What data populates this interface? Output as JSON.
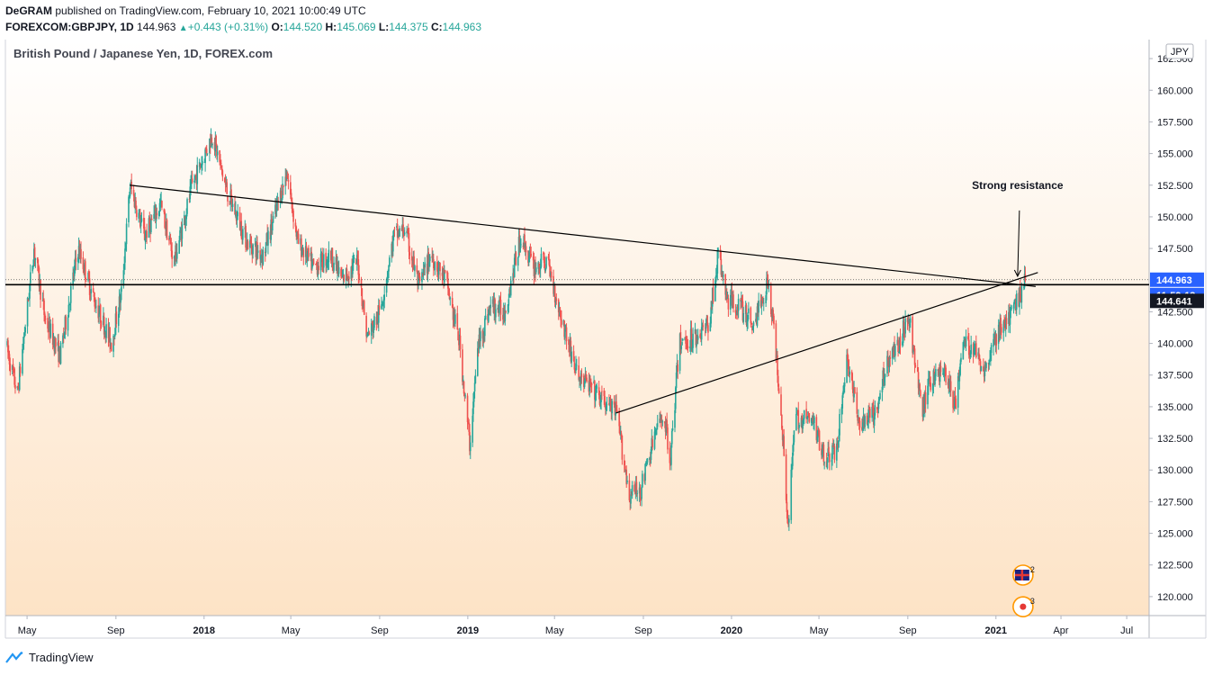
{
  "header": {
    "author": "DeGRAM",
    "published_text": "published on TradingView.com, February 10, 2021 10:00:49 UTC",
    "symbol": "FOREXCOM:GBPJPY, 1D",
    "last": "144.963",
    "change": "+0.443 (+0.31%)",
    "o_label": "O:",
    "o_value": "144.520",
    "h_label": "H:",
    "h_value": "145.069",
    "l_label": "L:",
    "l_value": "144.375",
    "c_label": "C:",
    "c_value": "144.963"
  },
  "footer": {
    "brand": "TradingView"
  },
  "colors": {
    "up": "#26a69a",
    "down": "#ef5350",
    "bg_top": "#ffffff",
    "bg_bottom": "#fde3c6",
    "price_tag": "#2962ff",
    "countdown_tag": "#2962ff",
    "line_tag": "#131722"
  },
  "chart_data": {
    "type": "candlestick",
    "title": "British Pound / Japanese Yen, 1D, FOREX.com",
    "currency_label": "JPY",
    "ylim": [
      118.5,
      164.0
    ],
    "xlim": [
      "2017-04-01",
      "2021-08-01"
    ],
    "y_ticks": [
      {
        "v": 120,
        "label": "120.000"
      },
      {
        "v": 122.5,
        "label": "122.500"
      },
      {
        "v": 125,
        "label": "125.000"
      },
      {
        "v": 127.5,
        "label": "127.500"
      },
      {
        "v": 130,
        "label": "130.000"
      },
      {
        "v": 132.5,
        "label": "132.500"
      },
      {
        "v": 135,
        "label": "135.000"
      },
      {
        "v": 137.5,
        "label": "137.500"
      },
      {
        "v": 140,
        "label": "140.000"
      },
      {
        "v": 142.5,
        "label": "142.500"
      },
      {
        "v": 147.5,
        "label": "147.500"
      },
      {
        "v": 150,
        "label": "150.000"
      },
      {
        "v": 152.5,
        "label": "152.500"
      },
      {
        "v": 155,
        "label": "155.000"
      },
      {
        "v": 157.5,
        "label": "157.500"
      },
      {
        "v": 160,
        "label": "160.000"
      },
      {
        "v": 162.5,
        "label": "162.500"
      }
    ],
    "x_ticks": [
      {
        "date": "2017-05-01",
        "label": "May",
        "bold": false
      },
      {
        "date": "2017-09-01",
        "label": "Sep",
        "bold": false
      },
      {
        "date": "2018-01-01",
        "label": "2018",
        "bold": true
      },
      {
        "date": "2018-05-01",
        "label": "May",
        "bold": false
      },
      {
        "date": "2018-09-01",
        "label": "Sep",
        "bold": false
      },
      {
        "date": "2019-01-01",
        "label": "2019",
        "bold": true
      },
      {
        "date": "2019-05-01",
        "label": "May",
        "bold": false
      },
      {
        "date": "2019-09-01",
        "label": "Sep",
        "bold": false
      },
      {
        "date": "2020-01-01",
        "label": "2020",
        "bold": true
      },
      {
        "date": "2020-05-01",
        "label": "May",
        "bold": false
      },
      {
        "date": "2020-09-01",
        "label": "Sep",
        "bold": false
      },
      {
        "date": "2021-01-01",
        "label": "2021",
        "bold": true
      },
      {
        "date": "2021-04-01",
        "label": "Apr",
        "bold": false
      },
      {
        "date": "2021-07-01",
        "label": "Jul",
        "bold": false
      }
    ],
    "price_path": [
      [
        "2017-04-01",
        140.0
      ],
      [
        "2017-04-17",
        136.0
      ],
      [
        "2017-05-01",
        143.0
      ],
      [
        "2017-05-10",
        147.5
      ],
      [
        "2017-05-25",
        142.0
      ],
      [
        "2017-06-15",
        139.0
      ],
      [
        "2017-07-10",
        147.5
      ],
      [
        "2017-08-01",
        143.5
      ],
      [
        "2017-08-25",
        140.0
      ],
      [
        "2017-09-08",
        144.0
      ],
      [
        "2017-09-20",
        152.5
      ],
      [
        "2017-10-10",
        148.5
      ],
      [
        "2017-11-01",
        151.0
      ],
      [
        "2017-11-20",
        146.5
      ],
      [
        "2017-12-15",
        152.5
      ],
      [
        "2018-01-12",
        156.5
      ],
      [
        "2018-02-01",
        152.0
      ],
      [
        "2018-03-01",
        148.0
      ],
      [
        "2018-03-23",
        147.0
      ],
      [
        "2018-04-10",
        150.5
      ],
      [
        "2018-04-25",
        153.5
      ],
      [
        "2018-05-10",
        148.0
      ],
      [
        "2018-06-01",
        146.0
      ],
      [
        "2018-06-25",
        147.0
      ],
      [
        "2018-07-10",
        145.0
      ],
      [
        "2018-08-01",
        146.5
      ],
      [
        "2018-08-14",
        140.5
      ],
      [
        "2018-09-01",
        142.5
      ],
      [
        "2018-09-20",
        148.5
      ],
      [
        "2018-10-05",
        149.0
      ],
      [
        "2018-10-25",
        144.5
      ],
      [
        "2018-11-10",
        147.0
      ],
      [
        "2018-12-01",
        145.0
      ],
      [
        "2018-12-20",
        140.0
      ],
      [
        "2019-01-03",
        132.0
      ],
      [
        "2019-01-15",
        140.0
      ],
      [
        "2019-02-01",
        143.0
      ],
      [
        "2019-02-20",
        142.5
      ],
      [
        "2019-03-15",
        148.5
      ],
      [
        "2019-04-01",
        146.0
      ],
      [
        "2019-04-20",
        146.5
      ],
      [
        "2019-05-10",
        142.0
      ],
      [
        "2019-06-01",
        137.5
      ],
      [
        "2019-06-20",
        136.5
      ],
      [
        "2019-07-05",
        135.5
      ],
      [
        "2019-07-25",
        134.5
      ],
      [
        "2019-08-12",
        128.0
      ],
      [
        "2019-08-28",
        128.5
      ],
      [
        "2019-09-15",
        132.5
      ],
      [
        "2019-09-28",
        134.5
      ],
      [
        "2019-10-08",
        131.0
      ],
      [
        "2019-10-20",
        140.0
      ],
      [
        "2019-11-10",
        140.5
      ],
      [
        "2019-11-30",
        141.5
      ],
      [
        "2019-12-13",
        147.0
      ],
      [
        "2019-12-25",
        143.5
      ],
      [
        "2020-01-10",
        143.0
      ],
      [
        "2020-01-31",
        141.5
      ],
      [
        "2020-02-20",
        145.0
      ],
      [
        "2020-03-01",
        140.0
      ],
      [
        "2020-03-10",
        134.0
      ],
      [
        "2020-03-19",
        125.5
      ],
      [
        "2020-03-28",
        134.0
      ],
      [
        "2020-04-20",
        134.0
      ],
      [
        "2020-05-10",
        131.0
      ],
      [
        "2020-05-25",
        131.5
      ],
      [
        "2020-06-08",
        139.0
      ],
      [
        "2020-06-25",
        133.5
      ],
      [
        "2020-07-20",
        134.5
      ],
      [
        "2020-08-01",
        138.5
      ],
      [
        "2020-08-20",
        140.0
      ],
      [
        "2020-09-01",
        142.5
      ],
      [
        "2020-09-20",
        134.5
      ],
      [
        "2020-10-01",
        137.0
      ],
      [
        "2020-10-20",
        138.0
      ],
      [
        "2020-11-05",
        135.0
      ],
      [
        "2020-11-15",
        140.0
      ],
      [
        "2020-12-01",
        139.5
      ],
      [
        "2020-12-15",
        138.0
      ],
      [
        "2021-01-04",
        141.0
      ],
      [
        "2021-01-20",
        142.0
      ],
      [
        "2021-02-10",
        144.963
      ]
    ],
    "horizontal_line": {
      "value": 144.641,
      "label": "144.641"
    },
    "last_price": {
      "value": 144.963,
      "label": "144.963"
    },
    "countdown": "11:59:13",
    "trendlines": [
      {
        "name": "resistance",
        "from": [
          "2017-09-20",
          152.5
        ],
        "to": [
          "2021-02-25",
          144.5
        ]
      },
      {
        "name": "support",
        "from": [
          "2019-07-25",
          134.5
        ],
        "to": [
          "2021-02-28",
          145.6
        ]
      }
    ],
    "annotation": {
      "text": "Strong resistance",
      "at": [
        "2021-01-31",
        150.5
      ],
      "arrow_to": [
        "2021-01-31",
        145.3
      ]
    },
    "event_badges": [
      {
        "count": "2"
      },
      {
        "count": "3"
      }
    ]
  }
}
